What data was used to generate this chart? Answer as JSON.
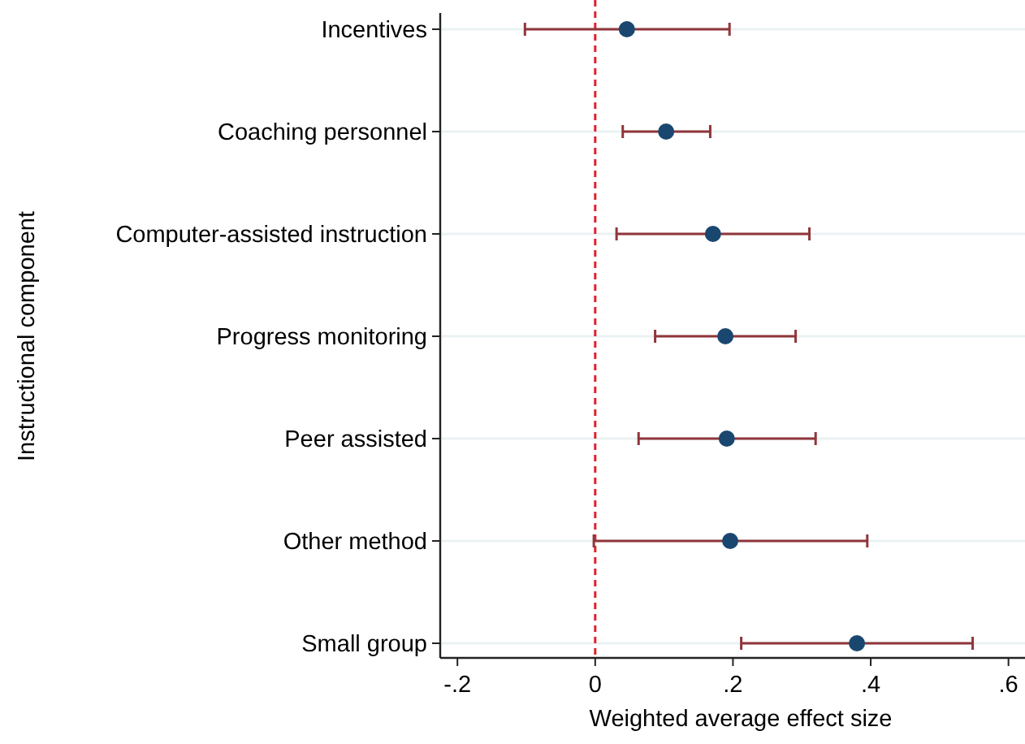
{
  "chart_data": {
    "type": "scatter",
    "orientation": "horizontal",
    "xlabel": "Weighted average effect size",
    "ylabel": "Instructional component",
    "categories": [
      "Incentives",
      "Coaching personnel",
      "Computer-assisted instruction",
      "Progress monitoring",
      "Peer assisted",
      "Other method",
      "Small group"
    ],
    "values": [
      0.046,
      0.103,
      0.171,
      0.189,
      0.191,
      0.196,
      0.38
    ],
    "errors": [
      [
        -0.102,
        0.195
      ],
      [
        0.04,
        0.167
      ],
      [
        0.031,
        0.311
      ],
      [
        0.087,
        0.291
      ],
      [
        0.063,
        0.32
      ],
      [
        -0.002,
        0.395
      ],
      [
        0.212,
        0.548
      ]
    ],
    "color": "#1a476f",
    "marker": "circle",
    "xlim": [
      -0.225,
      0.624
    ],
    "xticks": [
      {
        "value": -0.2,
        "label": "-.2"
      },
      0,
      {
        "value": 0.2,
        "label": ".2"
      },
      {
        "value": 0.4,
        "label": ".4"
      },
      {
        "value": 0.6,
        "label": ".6"
      }
    ],
    "grid": "y",
    "ref_lines": [
      {
        "axis": "x",
        "value": 0,
        "color": "#e0202e",
        "line_style": "dashed"
      }
    ]
  }
}
